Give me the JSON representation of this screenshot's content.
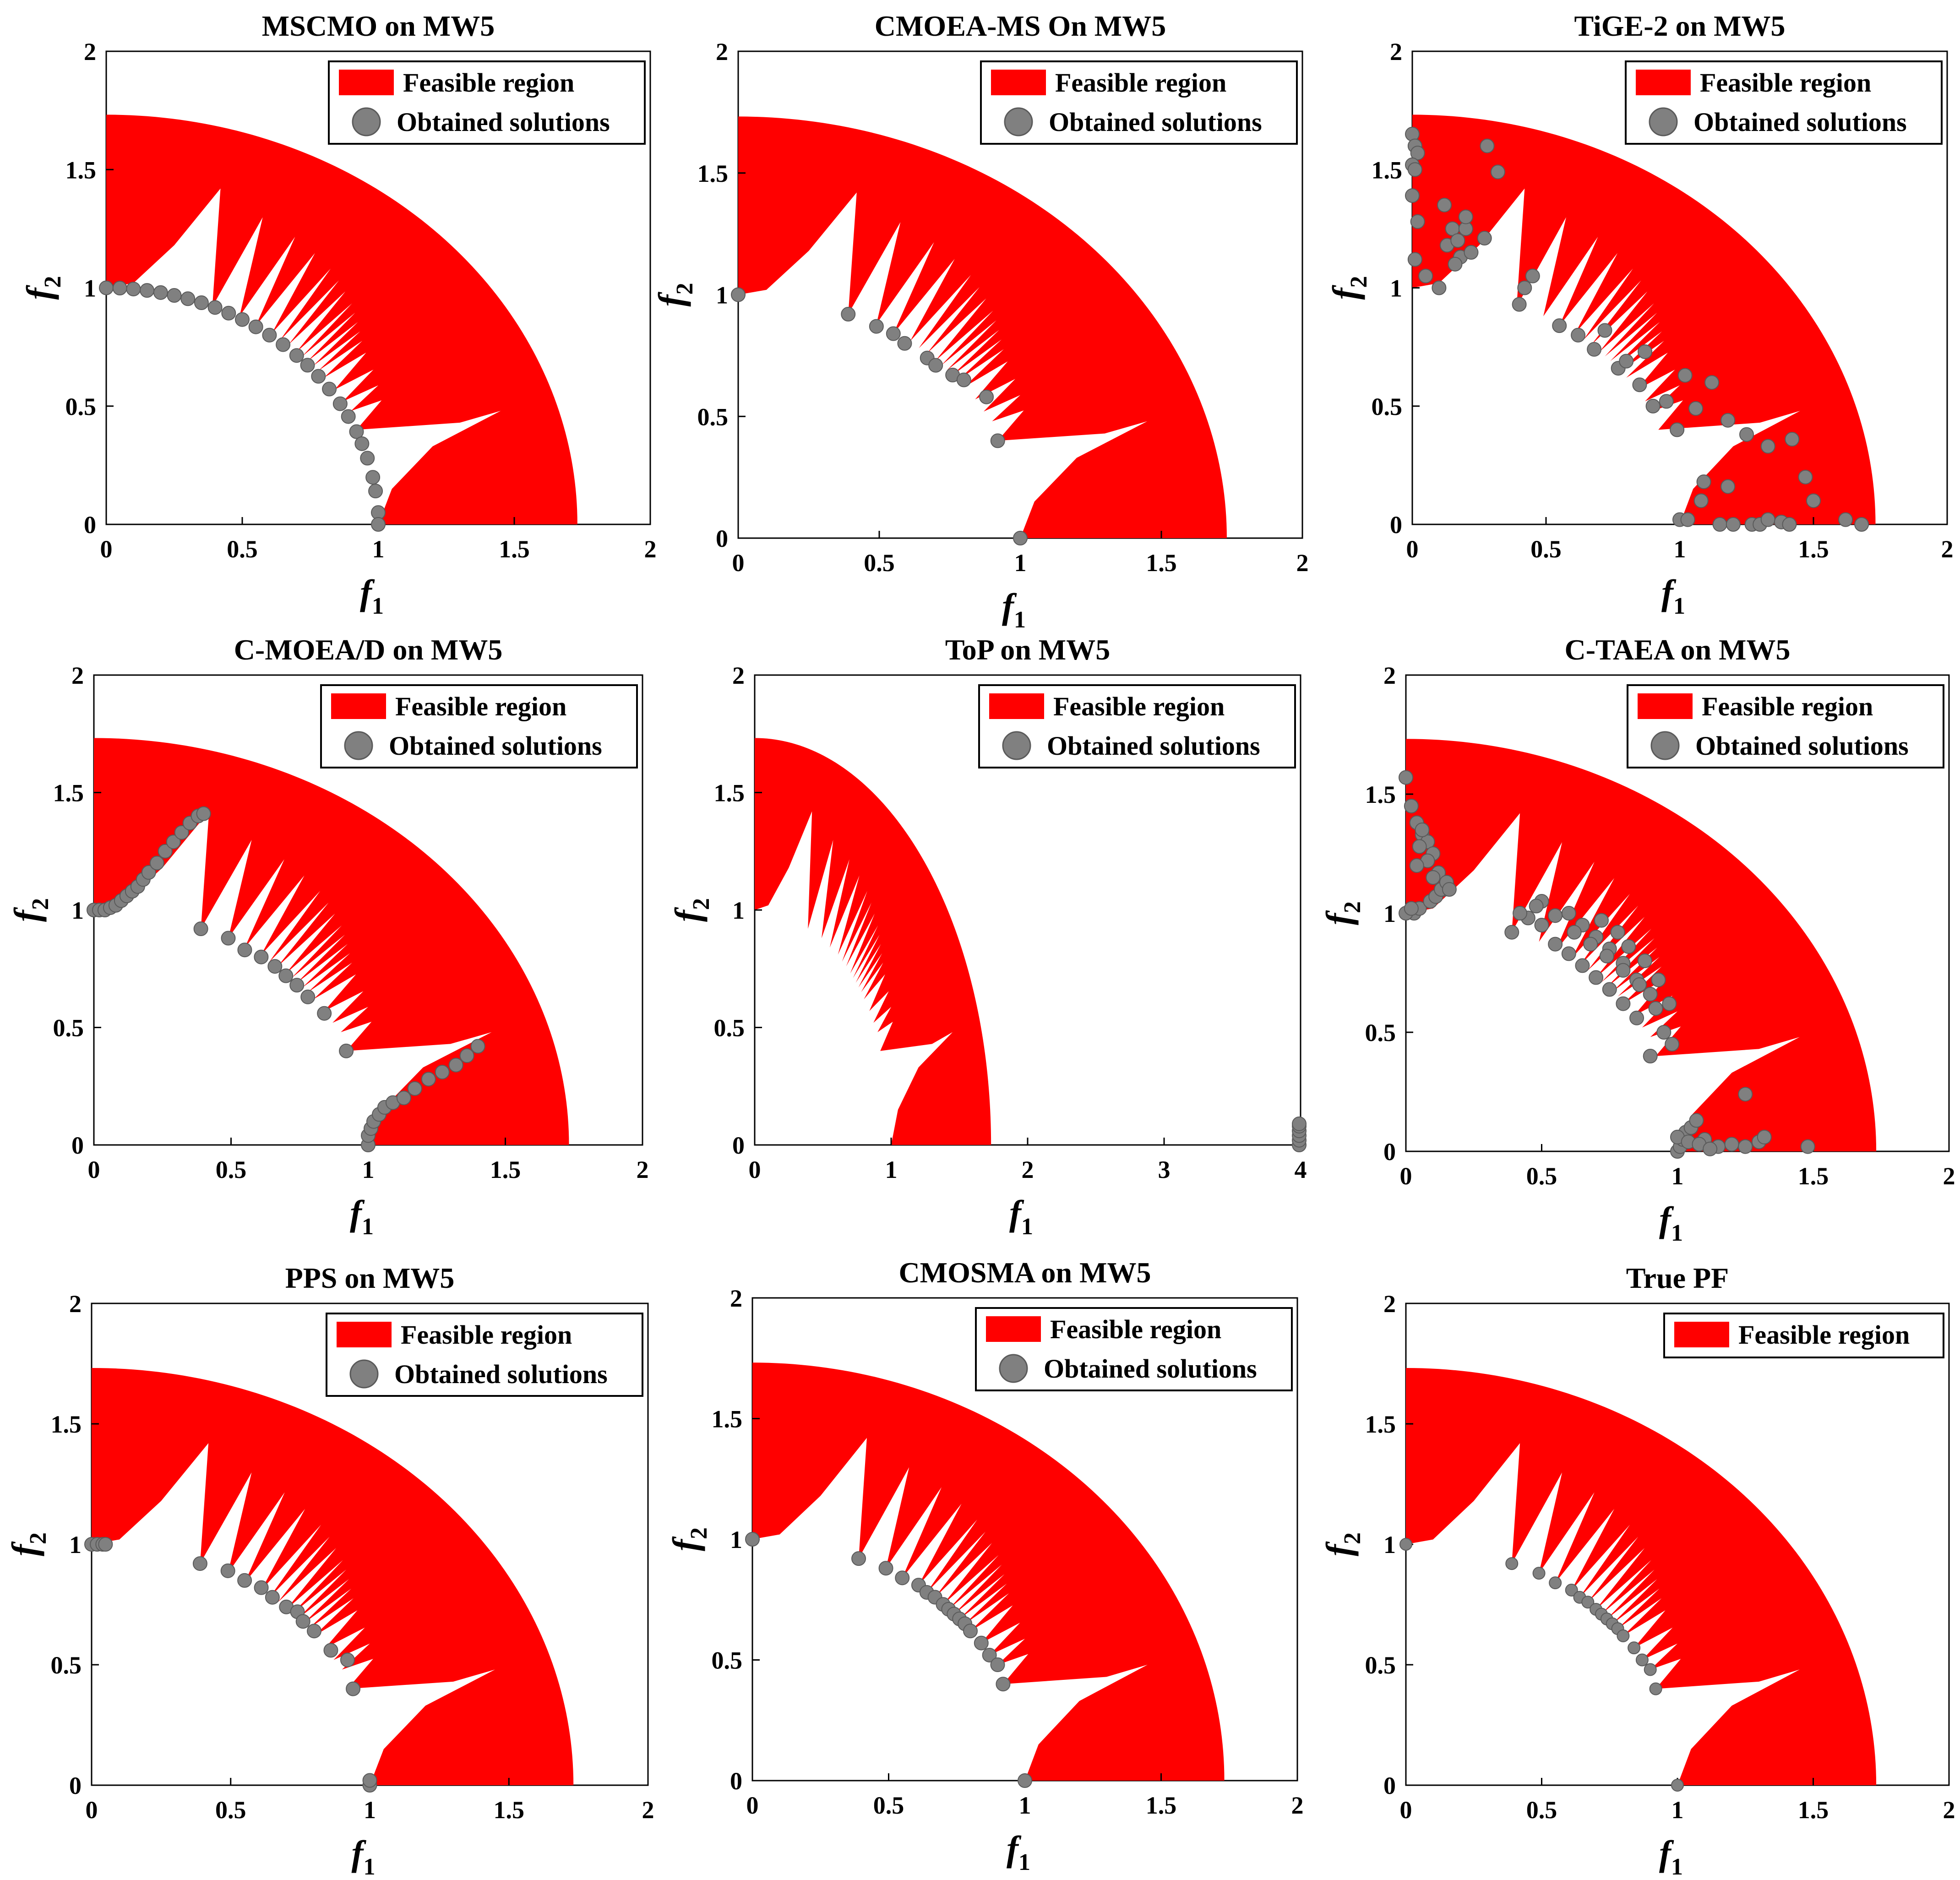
{
  "colors": {
    "feasible": "#ff0000",
    "solution": "#808080",
    "axis": "#000000",
    "background": "#ffffff"
  },
  "chart_data": [
    {
      "type": "scatter",
      "title": "MSCMO on MW5",
      "xlabel": "f",
      "xlabel_sub": "1",
      "ylabel": "f",
      "ylabel_sub": "2",
      "xlim": [
        0,
        2
      ],
      "ylim": [
        0,
        2
      ],
      "xticks": [
        "0",
        "0.5",
        "1",
        "1.5",
        "2"
      ],
      "yticks": [
        "0",
        "0.5",
        "1",
        "1.5",
        "2"
      ],
      "legend": [
        "Feasible region",
        "Obtained solutions"
      ],
      "series": [
        {
          "name": "Obtained solutions",
          "x": [
            0,
            0.05,
            0.1,
            0.15,
            0.2,
            0.25,
            0.3,
            0.35,
            0.4,
            0.45,
            0.5,
            0.55,
            0.6,
            0.65,
            0.7,
            0.74,
            0.78,
            0.82,
            0.86,
            0.89,
            0.92,
            0.94,
            0.96,
            0.98,
            0.99,
            1.0,
            1.0
          ],
          "y": [
            1.0,
            0.999,
            0.995,
            0.989,
            0.98,
            0.968,
            0.954,
            0.937,
            0.917,
            0.893,
            0.866,
            0.835,
            0.8,
            0.76,
            0.714,
            0.673,
            0.626,
            0.572,
            0.51,
            0.456,
            0.392,
            0.341,
            0.28,
            0.199,
            0.141,
            0.05,
            0.0
          ]
        }
      ]
    },
    {
      "type": "scatter",
      "title": "CMOEA-MS On MW5",
      "xlabel": "f",
      "xlabel_sub": "1",
      "ylabel": "f",
      "ylabel_sub": "2",
      "xlim": [
        0,
        2
      ],
      "ylim": [
        0,
        2
      ],
      "xticks": [
        "0",
        "0.5",
        "1",
        "1.5",
        "2"
      ],
      "yticks": [
        "0",
        "0.5",
        "1",
        "1.5",
        "2"
      ],
      "legend": [
        "Feasible region",
        "Obtained solutions"
      ],
      "series": [
        {
          "name": "Obtained solutions",
          "x": [
            0.0,
            0.39,
            0.49,
            0.55,
            0.59,
            0.67,
            0.7,
            0.76,
            0.8,
            0.88,
            0.92,
            1.0
          ],
          "y": [
            1.0,
            0.92,
            0.87,
            0.84,
            0.8,
            0.74,
            0.71,
            0.67,
            0.65,
            0.58,
            0.4,
            0.0
          ]
        }
      ]
    },
    {
      "type": "scatter",
      "title": "TiGE-2 on MW5",
      "xlabel": "f",
      "xlabel_sub": "1",
      "ylabel": "f",
      "ylabel_sub": "2",
      "xlim": [
        0,
        2
      ],
      "ylim": [
        0,
        2
      ],
      "xticks": [
        "0",
        "0.5",
        "1",
        "1.5",
        "2"
      ],
      "yticks": [
        "0",
        "0.5",
        "1",
        "1.5",
        "2"
      ],
      "legend": [
        "Feasible region",
        "Obtained solutions"
      ],
      "series": [
        {
          "name": "Obtained solutions",
          "x": [
            0.0,
            0.01,
            0.02,
            0.0,
            0.01,
            0.0,
            0.02,
            0.01,
            0.05,
            0.1,
            0.13,
            0.15,
            0.17,
            0.18,
            0.2,
            0.22,
            0.2,
            0.16,
            0.12,
            0.27,
            0.32,
            0.28,
            0.4,
            0.42,
            0.45,
            0.55,
            0.62,
            0.68,
            0.72,
            0.77,
            0.8,
            0.85,
            0.87,
            0.9,
            0.95,
            0.99,
            1.02,
            1.06,
            1.12,
            1.18,
            1.25,
            1.33,
            1.42,
            1.47,
            1.0,
            1.03,
            1.08,
            1.15,
            1.2,
            1.27,
            1.3,
            1.33,
            1.38,
            1.41,
            1.5,
            1.62,
            1.68,
            1.09,
            1.18
          ],
          "y": [
            1.65,
            1.6,
            1.57,
            1.52,
            1.5,
            1.39,
            1.28,
            1.12,
            1.05,
            1.0,
            1.18,
            1.25,
            1.2,
            1.13,
            1.25,
            1.15,
            1.3,
            1.1,
            1.35,
            1.21,
            1.49,
            1.6,
            0.93,
            1.0,
            1.05,
            0.84,
            0.8,
            0.74,
            0.82,
            0.66,
            0.69,
            0.59,
            0.73,
            0.5,
            0.52,
            0.4,
            0.63,
            0.49,
            0.6,
            0.44,
            0.38,
            0.33,
            0.36,
            0.2,
            0.02,
            0.02,
            0.1,
            0.0,
            0.0,
            0.0,
            0.0,
            0.02,
            0.01,
            0.0,
            0.1,
            0.02,
            0.0,
            0.18,
            0.16
          ]
        }
      ]
    },
    {
      "type": "scatter",
      "title": "C-MOEA/D on MW5",
      "xlabel": "f",
      "xlabel_sub": "1",
      "ylabel": "f",
      "ylabel_sub": "2",
      "xlim": [
        0,
        2
      ],
      "ylim": [
        0,
        2
      ],
      "xticks": [
        "0",
        "0.5",
        "1",
        "1.5",
        "2"
      ],
      "yticks": [
        "0",
        "0.5",
        "1",
        "1.5",
        "2"
      ],
      "legend": [
        "Feasible region",
        "Obtained solutions"
      ],
      "series": [
        {
          "name": "Obtained solutions",
          "x": [
            0.0,
            0.02,
            0.04,
            0.06,
            0.08,
            0.1,
            0.12,
            0.14,
            0.16,
            0.18,
            0.2,
            0.23,
            0.26,
            0.29,
            0.32,
            0.35,
            0.38,
            0.4,
            0.39,
            0.49,
            0.55,
            0.61,
            0.66,
            0.7,
            0.74,
            0.78,
            0.84,
            0.92,
            1.0,
            1.0,
            1.01,
            1.02,
            1.04,
            1.06,
            1.09,
            1.13,
            1.17,
            1.22,
            1.27,
            1.32,
            1.36,
            1.4
          ],
          "y": [
            1.0,
            1.0,
            1.0,
            1.01,
            1.02,
            1.04,
            1.06,
            1.08,
            1.1,
            1.13,
            1.16,
            1.2,
            1.25,
            1.29,
            1.33,
            1.37,
            1.4,
            1.41,
            0.92,
            0.88,
            0.83,
            0.8,
            0.76,
            0.72,
            0.68,
            0.63,
            0.56,
            0.4,
            0.0,
            0.04,
            0.07,
            0.1,
            0.13,
            0.16,
            0.18,
            0.2,
            0.24,
            0.28,
            0.31,
            0.34,
            0.38,
            0.42
          ]
        }
      ]
    },
    {
      "type": "scatter",
      "title": "ToP on MW5",
      "xlabel": "f",
      "xlabel_sub": "1",
      "ylabel": "f",
      "ylabel_sub": "2",
      "xlim": [
        0,
        4
      ],
      "ylim": [
        0,
        2
      ],
      "xticks": [
        "0",
        "1",
        "2",
        "3",
        "4"
      ],
      "yticks": [
        "0",
        "0.5",
        "1",
        "1.5",
        "2"
      ],
      "legend": [
        "Feasible region",
        "Obtained solutions"
      ],
      "series": [
        {
          "name": "Obtained solutions",
          "x": [
            3.99,
            3.99,
            3.99,
            3.99,
            3.99,
            3.99
          ],
          "y": [
            0.0,
            0.02,
            0.04,
            0.06,
            0.08,
            0.09
          ]
        }
      ]
    },
    {
      "type": "scatter",
      "title": "C-TAEA on MW5",
      "xlabel": "f",
      "xlabel_sub": "1",
      "ylabel": "f",
      "ylabel_sub": "2",
      "xlim": [
        0,
        2
      ],
      "ylim": [
        0,
        2
      ],
      "xticks": [
        "0",
        "0.5",
        "1",
        "1.5",
        "2"
      ],
      "yticks": [
        "0",
        "0.5",
        "1",
        "1.5",
        "2"
      ],
      "legend": [
        "Feasible region",
        "Obtained solutions"
      ],
      "series": [
        {
          "name": "Obtained solutions",
          "x": [
            0.0,
            0.02,
            0.04,
            0.06,
            0.08,
            0.1,
            0.12,
            0.14,
            0.03,
            0.05,
            0.09,
            0.11,
            0.13,
            0.15,
            0.06,
            0.08,
            0.0,
            0.02,
            0.1,
            0.16,
            0.05,
            0.04,
            0.39,
            0.45,
            0.5,
            0.55,
            0.6,
            0.65,
            0.7,
            0.75,
            0.8,
            0.85,
            0.9,
            0.5,
            0.6,
            0.65,
            0.7,
            0.75,
            0.8,
            0.85,
            0.9,
            0.95,
            0.42,
            0.48,
            0.55,
            0.62,
            0.68,
            0.74,
            0.8,
            0.86,
            0.92,
            0.98,
            0.72,
            0.78,
            0.82,
            0.88,
            0.93,
            0.97,
            1.0,
            1.01,
            1.02,
            1.03,
            1.05,
            1.07,
            1.1,
            1.15,
            1.2,
            1.25,
            1.3,
            1.48,
            1.0,
            1.04,
            1.08,
            1.12,
            1.25,
            1.32
          ],
          "y": [
            1.57,
            1.45,
            1.38,
            1.33,
            1.3,
            1.25,
            1.17,
            1.1,
            1.0,
            1.02,
            1.05,
            1.07,
            1.1,
            1.13,
            1.35,
            1.22,
            1.0,
            1.02,
            1.15,
            1.1,
            1.28,
            1.2,
            0.92,
            0.98,
            0.95,
            0.87,
            0.83,
            0.78,
            0.73,
            0.68,
            0.62,
            0.56,
            0.4,
            1.05,
            1.0,
            0.95,
            0.9,
            0.85,
            0.79,
            0.72,
            0.66,
            0.5,
            1.0,
            1.03,
            0.99,
            0.92,
            0.87,
            0.82,
            0.76,
            0.7,
            0.6,
            0.45,
            0.97,
            0.92,
            0.86,
            0.8,
            0.72,
            0.62,
            0.0,
            0.02,
            0.05,
            0.08,
            0.1,
            0.13,
            0.05,
            0.02,
            0.03,
            0.02,
            0.04,
            0.02,
            0.06,
            0.04,
            0.03,
            0.01,
            0.24,
            0.06
          ]
        }
      ]
    },
    {
      "type": "scatter",
      "title": "PPS on MW5",
      "xlabel": "f",
      "xlabel_sub": "1",
      "ylabel": "f",
      "ylabel_sub": "2",
      "xlim": [
        0,
        2
      ],
      "ylim": [
        0,
        2
      ],
      "xticks": [
        "0",
        "0.5",
        "1",
        "1.5",
        "2"
      ],
      "yticks": [
        "0",
        "0.5",
        "1",
        "1.5",
        "2"
      ],
      "legend": [
        "Feasible region",
        "Obtained solutions"
      ],
      "series": [
        {
          "name": "Obtained solutions",
          "x": [
            0.0,
            0.02,
            0.04,
            0.05,
            0.39,
            0.49,
            0.55,
            0.61,
            0.65,
            0.7,
            0.74,
            0.76,
            0.8,
            0.86,
            0.92,
            0.94,
            1.0,
            1.0
          ],
          "y": [
            1.0,
            1.0,
            1.0,
            1.0,
            0.92,
            0.89,
            0.85,
            0.82,
            0.78,
            0.74,
            0.72,
            0.68,
            0.64,
            0.56,
            0.52,
            0.4,
            0.0,
            0.02
          ]
        }
      ]
    },
    {
      "type": "scatter",
      "title": "CMOSMA on MW5",
      "xlabel": "f",
      "xlabel_sub": "1",
      "ylabel": "f",
      "ylabel_sub": "2",
      "xlim": [
        0,
        2
      ],
      "ylim": [
        0,
        2
      ],
      "xticks": [
        "0",
        "0.5",
        "1",
        "1.5",
        "2"
      ],
      "yticks": [
        "0",
        "0.5",
        "1",
        "1.5",
        "2"
      ],
      "legend": [
        "Feasible region",
        "Obtained solutions"
      ],
      "series": [
        {
          "name": "Obtained solutions",
          "x": [
            0.0,
            0.39,
            0.49,
            0.55,
            0.61,
            0.64,
            0.67,
            0.7,
            0.72,
            0.74,
            0.76,
            0.78,
            0.8,
            0.84,
            0.87,
            0.9,
            0.92,
            1.0
          ],
          "y": [
            1.0,
            0.92,
            0.88,
            0.84,
            0.81,
            0.78,
            0.76,
            0.73,
            0.71,
            0.69,
            0.67,
            0.65,
            0.62,
            0.57,
            0.52,
            0.48,
            0.4,
            0.0
          ]
        }
      ]
    },
    {
      "type": "scatter",
      "title": "True PF",
      "xlabel": "f",
      "xlabel_sub": "1",
      "ylabel": "f",
      "ylabel_sub": "2",
      "xlim": [
        0,
        2
      ],
      "ylim": [
        0,
        2
      ],
      "xticks": [
        "0",
        "0.5",
        "1",
        "1.5",
        "2"
      ],
      "yticks": [
        "0",
        "0.5",
        "1",
        "1.5",
        "2"
      ],
      "legend": [
        "Feasible region"
      ],
      "series": [
        {
          "name": "",
          "x": [
            0.0,
            0.39,
            0.49,
            0.55,
            0.61,
            0.64,
            0.67,
            0.7,
            0.72,
            0.74,
            0.76,
            0.78,
            0.8,
            0.84,
            0.87,
            0.9,
            0.92,
            1.0
          ],
          "y": [
            1.0,
            0.92,
            0.88,
            0.84,
            0.81,
            0.78,
            0.76,
            0.73,
            0.71,
            0.69,
            0.67,
            0.65,
            0.62,
            0.57,
            0.52,
            0.48,
            0.4,
            0.0
          ]
        }
      ]
    }
  ]
}
